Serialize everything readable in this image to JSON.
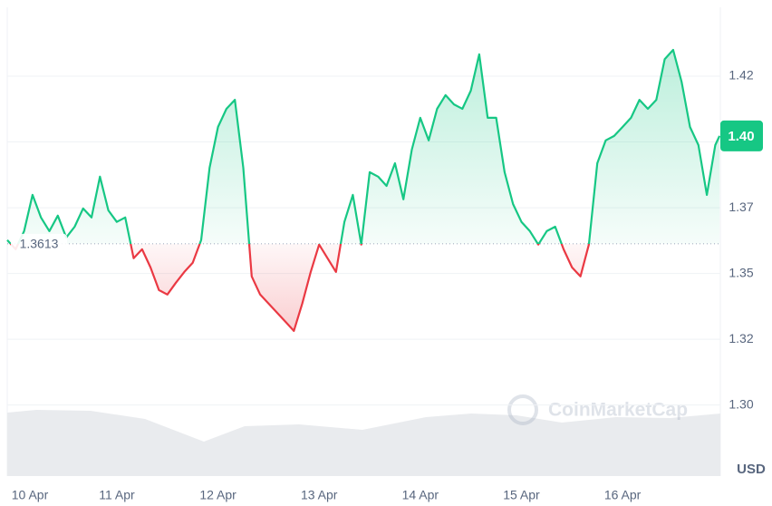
{
  "chart_data": {
    "type": "line",
    "x": [
      -2,
      0,
      2,
      4,
      6,
      8,
      10,
      12,
      14,
      16,
      18,
      20,
      22,
      24,
      26,
      28,
      30,
      32,
      34,
      36,
      38,
      40,
      42,
      44,
      46,
      48,
      50,
      52,
      54,
      56,
      58,
      60,
      62,
      64,
      66,
      68,
      70,
      72,
      74,
      76,
      78,
      80,
      82,
      84,
      86,
      88,
      90,
      92,
      94,
      96,
      98,
      100,
      102,
      104,
      106,
      108,
      110,
      112,
      114,
      116,
      118,
      120,
      122,
      124,
      126,
      128,
      130,
      132,
      134,
      136,
      138,
      140,
      142,
      144,
      146,
      148,
      150,
      152,
      154,
      156,
      158,
      160,
      162,
      164,
      166,
      167
    ],
    "values": [
      1.3627,
      1.3592,
      1.3661,
      1.3799,
      1.3713,
      1.3661,
      1.372,
      1.3637,
      1.3678,
      1.3747,
      1.3713,
      1.3868,
      1.374,
      1.3696,
      1.3713,
      1.3558,
      1.3592,
      1.3523,
      1.3437,
      1.342,
      1.3465,
      1.3506,
      1.3541,
      1.3627,
      1.3902,
      1.4057,
      1.4126,
      1.416,
      1.3902,
      1.3489,
      1.342,
      1.3386,
      1.3351,
      1.3317,
      1.3282,
      1.3386,
      1.3506,
      1.361,
      1.3558,
      1.3506,
      1.3696,
      1.3799,
      1.361,
      1.3885,
      1.3868,
      1.3833,
      1.3919,
      1.3782,
      1.3971,
      1.4092,
      1.4006,
      1.4126,
      1.4178,
      1.4143,
      1.4126,
      1.4195,
      1.4333,
      1.4092,
      1.4092,
      1.3885,
      1.3764,
      1.3696,
      1.3661,
      1.361,
      1.3661,
      1.3678,
      1.3592,
      1.3523,
      1.3489,
      1.361,
      1.3919,
      1.4006,
      1.4023,
      1.4057,
      1.4092,
      1.416,
      1.4126,
      1.416,
      1.4315,
      1.435,
      1.4229,
      1.4057,
      1.3988,
      1.3799,
      1.3988,
      1.4023
    ],
    "up_color": "#16c784",
    "down_color": "#ea3943",
    "baseline": 1.3613,
    "current_price": {
      "value": 1.4023,
      "label": "1.40"
    },
    "xlim": [
      -2,
      167.2
    ],
    "xticks": [
      {
        "value": 0,
        "label": "10 Apr"
      },
      {
        "value": 24,
        "label": "11 Apr"
      },
      {
        "value": 48,
        "label": "12 Apr"
      },
      {
        "value": 72,
        "label": "13 Apr"
      },
      {
        "value": 96,
        "label": "14 Apr"
      },
      {
        "value": 120,
        "label": "15 Apr"
      },
      {
        "value": 144,
        "label": "16 Apr"
      }
    ],
    "ylim": [
      1.273,
      1.4512
    ],
    "yticks": [
      {
        "value": 1.3,
        "label": "1.30"
      },
      {
        "value": 1.325,
        "label": "1.32"
      },
      {
        "value": 1.35,
        "label": "1.35"
      },
      {
        "value": 1.375,
        "label": "1.37"
      },
      {
        "value": 1.4,
        "label": "1.40"
      },
      {
        "value": 1.425,
        "label": "1.42"
      }
    ],
    "y_unit": "USD",
    "watermark": "CoinMarketCap",
    "grid": true
  }
}
